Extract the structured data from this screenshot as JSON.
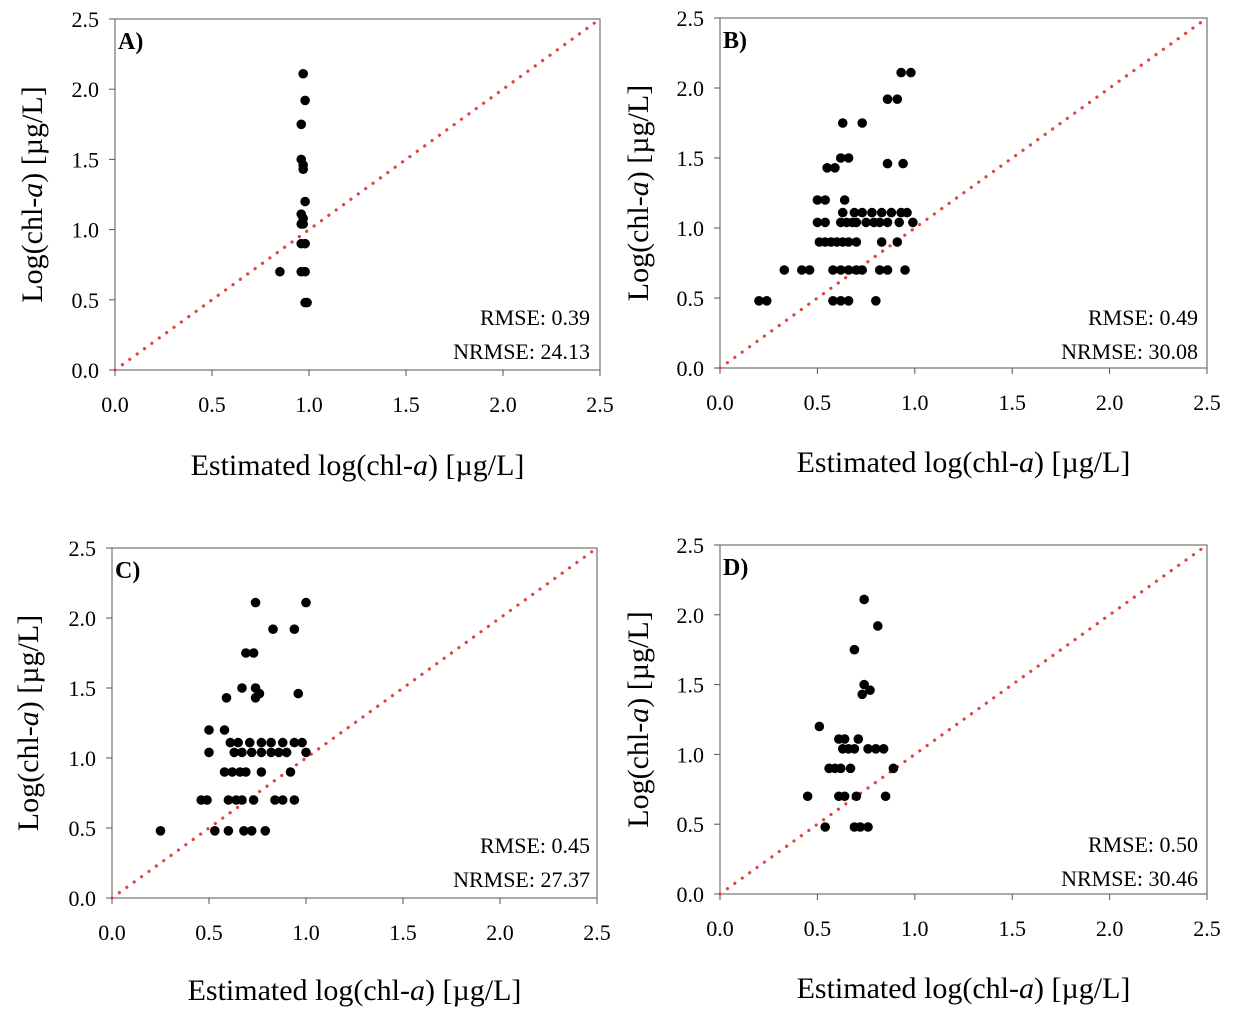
{
  "figure": {
    "dot_color": "#000000",
    "reference_line_color": "#e0443a",
    "frame_color": "#555555"
  },
  "chart_data": [
    {
      "type": "scatter",
      "panel": "A)",
      "xlabel_parts": [
        "Estimated log(chl-",
        "a",
        ") [µg/L]"
      ],
      "ylabel_parts": [
        "Log(chl-",
        "a",
        ") [µg/L]"
      ],
      "xlim": [
        0,
        2.5
      ],
      "ylim": [
        0,
        2.5
      ],
      "xticks": [
        "0.0",
        "0.5",
        "1.0",
        "1.5",
        "2.0",
        "2.5"
      ],
      "yticks": [
        "0.0",
        "0.5",
        "1.0",
        "1.5",
        "2.0",
        "2.5"
      ],
      "reference_line": "1:1 dotted",
      "stats": [
        "RMSE: 0.39",
        "NRMSE: 24.13"
      ],
      "points": [
        [
          0.97,
          2.11
        ],
        [
          0.98,
          1.92
        ],
        [
          0.96,
          1.75
        ],
        [
          0.96,
          1.5
        ],
        [
          0.97,
          1.46
        ],
        [
          0.97,
          1.43
        ],
        [
          0.98,
          1.2
        ],
        [
          0.96,
          1.11
        ],
        [
          0.97,
          1.08
        ],
        [
          0.96,
          1.04
        ],
        [
          0.97,
          1.04
        ],
        [
          0.96,
          0.9
        ],
        [
          0.98,
          0.9
        ],
        [
          0.85,
          0.7
        ],
        [
          0.96,
          0.7
        ],
        [
          0.98,
          0.7
        ],
        [
          0.98,
          0.48
        ],
        [
          0.99,
          0.48
        ]
      ]
    },
    {
      "type": "scatter",
      "panel": "B)",
      "xlabel_parts": [
        "Estimated log(chl-",
        "a",
        ") [µg/L]"
      ],
      "ylabel_parts": [
        "Log(chl-",
        "a",
        ") [µg/L]"
      ],
      "xlim": [
        0,
        2.5
      ],
      "ylim": [
        0,
        2.5
      ],
      "xticks": [
        "0.0",
        "0.5",
        "1.0",
        "1.5",
        "2.0",
        "2.5"
      ],
      "yticks": [
        "0.0",
        "0.5",
        "1.0",
        "1.5",
        "2.0",
        "2.5"
      ],
      "reference_line": "1:1 dotted",
      "stats": [
        "RMSE: 0.49",
        "NRMSE: 30.08"
      ],
      "points": [
        [
          0.93,
          2.11
        ],
        [
          0.98,
          2.11
        ],
        [
          0.86,
          1.92
        ],
        [
          0.91,
          1.92
        ],
        [
          0.63,
          1.75
        ],
        [
          0.73,
          1.75
        ],
        [
          0.62,
          1.5
        ],
        [
          0.66,
          1.5
        ],
        [
          0.55,
          1.43
        ],
        [
          0.59,
          1.43
        ],
        [
          0.86,
          1.46
        ],
        [
          0.94,
          1.46
        ],
        [
          0.5,
          1.2
        ],
        [
          0.54,
          1.2
        ],
        [
          0.64,
          1.2
        ],
        [
          0.5,
          1.04
        ],
        [
          0.54,
          1.04
        ],
        [
          0.62,
          1.04
        ],
        [
          0.65,
          1.04
        ],
        [
          0.68,
          1.04
        ],
        [
          0.7,
          1.04
        ],
        [
          0.75,
          1.04
        ],
        [
          0.79,
          1.04
        ],
        [
          0.82,
          1.04
        ],
        [
          0.86,
          1.04
        ],
        [
          0.92,
          1.04
        ],
        [
          0.99,
          1.04
        ],
        [
          0.63,
          1.11
        ],
        [
          0.69,
          1.11
        ],
        [
          0.73,
          1.11
        ],
        [
          0.78,
          1.11
        ],
        [
          0.83,
          1.11
        ],
        [
          0.88,
          1.11
        ],
        [
          0.93,
          1.11
        ],
        [
          0.96,
          1.11
        ],
        [
          0.51,
          0.9
        ],
        [
          0.54,
          0.9
        ],
        [
          0.57,
          0.9
        ],
        [
          0.6,
          0.9
        ],
        [
          0.63,
          0.9
        ],
        [
          0.66,
          0.9
        ],
        [
          0.7,
          0.9
        ],
        [
          0.83,
          0.9
        ],
        [
          0.91,
          0.9
        ],
        [
          0.33,
          0.7
        ],
        [
          0.42,
          0.7
        ],
        [
          0.46,
          0.7
        ],
        [
          0.58,
          0.7
        ],
        [
          0.62,
          0.7
        ],
        [
          0.66,
          0.7
        ],
        [
          0.7,
          0.7
        ],
        [
          0.73,
          0.7
        ],
        [
          0.82,
          0.7
        ],
        [
          0.86,
          0.7
        ],
        [
          0.95,
          0.7
        ],
        [
          0.2,
          0.48
        ],
        [
          0.24,
          0.48
        ],
        [
          0.58,
          0.48
        ],
        [
          0.62,
          0.48
        ],
        [
          0.66,
          0.48
        ],
        [
          0.8,
          0.48
        ]
      ]
    },
    {
      "type": "scatter",
      "panel": "C)",
      "xlabel_parts": [
        "Estimated log(chl-",
        "a",
        ") [µg/L]"
      ],
      "ylabel_parts": [
        "Log(chl-",
        "a",
        ") [µg/L]"
      ],
      "xlim": [
        0,
        2.5
      ],
      "ylim": [
        0,
        2.5
      ],
      "xticks": [
        "0.0",
        "0.5",
        "1.0",
        "1.5",
        "2.0",
        "2.5"
      ],
      "yticks": [
        "0.0",
        "0.5",
        "1.0",
        "1.5",
        "2.0",
        "2.5"
      ],
      "reference_line": "1:1 dotted",
      "stats": [
        "RMSE: 0.45",
        "NRMSE: 27.37"
      ],
      "points": [
        [
          0.74,
          2.11
        ],
        [
          1.0,
          2.11
        ],
        [
          0.83,
          1.92
        ],
        [
          0.94,
          1.92
        ],
        [
          0.69,
          1.75
        ],
        [
          0.73,
          1.75
        ],
        [
          0.67,
          1.5
        ],
        [
          0.74,
          1.5
        ],
        [
          0.76,
          1.46
        ],
        [
          0.96,
          1.46
        ],
        [
          0.59,
          1.43
        ],
        [
          0.74,
          1.43
        ],
        [
          0.5,
          1.2
        ],
        [
          0.58,
          1.2
        ],
        [
          0.61,
          1.11
        ],
        [
          0.65,
          1.11
        ],
        [
          0.71,
          1.11
        ],
        [
          0.77,
          1.11
        ],
        [
          0.82,
          1.11
        ],
        [
          0.88,
          1.11
        ],
        [
          0.94,
          1.11
        ],
        [
          0.98,
          1.11
        ],
        [
          0.5,
          1.04
        ],
        [
          0.63,
          1.04
        ],
        [
          0.67,
          1.04
        ],
        [
          0.72,
          1.04
        ],
        [
          0.77,
          1.04
        ],
        [
          0.82,
          1.04
        ],
        [
          0.86,
          1.04
        ],
        [
          0.9,
          1.04
        ],
        [
          1.0,
          1.04
        ],
        [
          0.58,
          0.9
        ],
        [
          0.62,
          0.9
        ],
        [
          0.66,
          0.9
        ],
        [
          0.69,
          0.9
        ],
        [
          0.77,
          0.9
        ],
        [
          0.92,
          0.9
        ],
        [
          0.46,
          0.7
        ],
        [
          0.49,
          0.7
        ],
        [
          0.6,
          0.7
        ],
        [
          0.64,
          0.7
        ],
        [
          0.67,
          0.7
        ],
        [
          0.73,
          0.7
        ],
        [
          0.84,
          0.7
        ],
        [
          0.88,
          0.7
        ],
        [
          0.94,
          0.7
        ],
        [
          0.25,
          0.48
        ],
        [
          0.53,
          0.48
        ],
        [
          0.6,
          0.48
        ],
        [
          0.68,
          0.48
        ],
        [
          0.72,
          0.48
        ],
        [
          0.79,
          0.48
        ]
      ]
    },
    {
      "type": "scatter",
      "panel": "D)",
      "xlabel_parts": [
        "Estimated log(chl-",
        "a",
        ") [µg/L]"
      ],
      "ylabel_parts": [
        "Log(chl-",
        "a",
        ") [µg/L]"
      ],
      "xlim": [
        0,
        2.5
      ],
      "ylim": [
        0,
        2.5
      ],
      "xticks": [
        "0.0",
        "0.5",
        "1.0",
        "1.5",
        "2.0",
        "2.5"
      ],
      "yticks": [
        "0.0",
        "0.5",
        "1.0",
        "1.5",
        "2.0",
        "2.5"
      ],
      "reference_line": "1:1 dotted",
      "stats": [
        "RMSE: 0.50",
        "NRMSE: 30.46"
      ],
      "points": [
        [
          0.74,
          2.11
        ],
        [
          0.81,
          1.92
        ],
        [
          0.69,
          1.75
        ],
        [
          0.74,
          1.5
        ],
        [
          0.73,
          1.43
        ],
        [
          0.77,
          1.46
        ],
        [
          0.51,
          1.2
        ],
        [
          0.61,
          1.11
        ],
        [
          0.64,
          1.11
        ],
        [
          0.71,
          1.11
        ],
        [
          0.63,
          1.04
        ],
        [
          0.66,
          1.04
        ],
        [
          0.69,
          1.04
        ],
        [
          0.76,
          1.04
        ],
        [
          0.8,
          1.04
        ],
        [
          0.84,
          1.04
        ],
        [
          0.56,
          0.9
        ],
        [
          0.59,
          0.9
        ],
        [
          0.62,
          0.9
        ],
        [
          0.67,
          0.9
        ],
        [
          0.89,
          0.9
        ],
        [
          0.45,
          0.7
        ],
        [
          0.61,
          0.7
        ],
        [
          0.64,
          0.7
        ],
        [
          0.7,
          0.7
        ],
        [
          0.85,
          0.7
        ],
        [
          0.54,
          0.48
        ],
        [
          0.69,
          0.48
        ],
        [
          0.72,
          0.48
        ],
        [
          0.76,
          0.48
        ]
      ]
    }
  ]
}
